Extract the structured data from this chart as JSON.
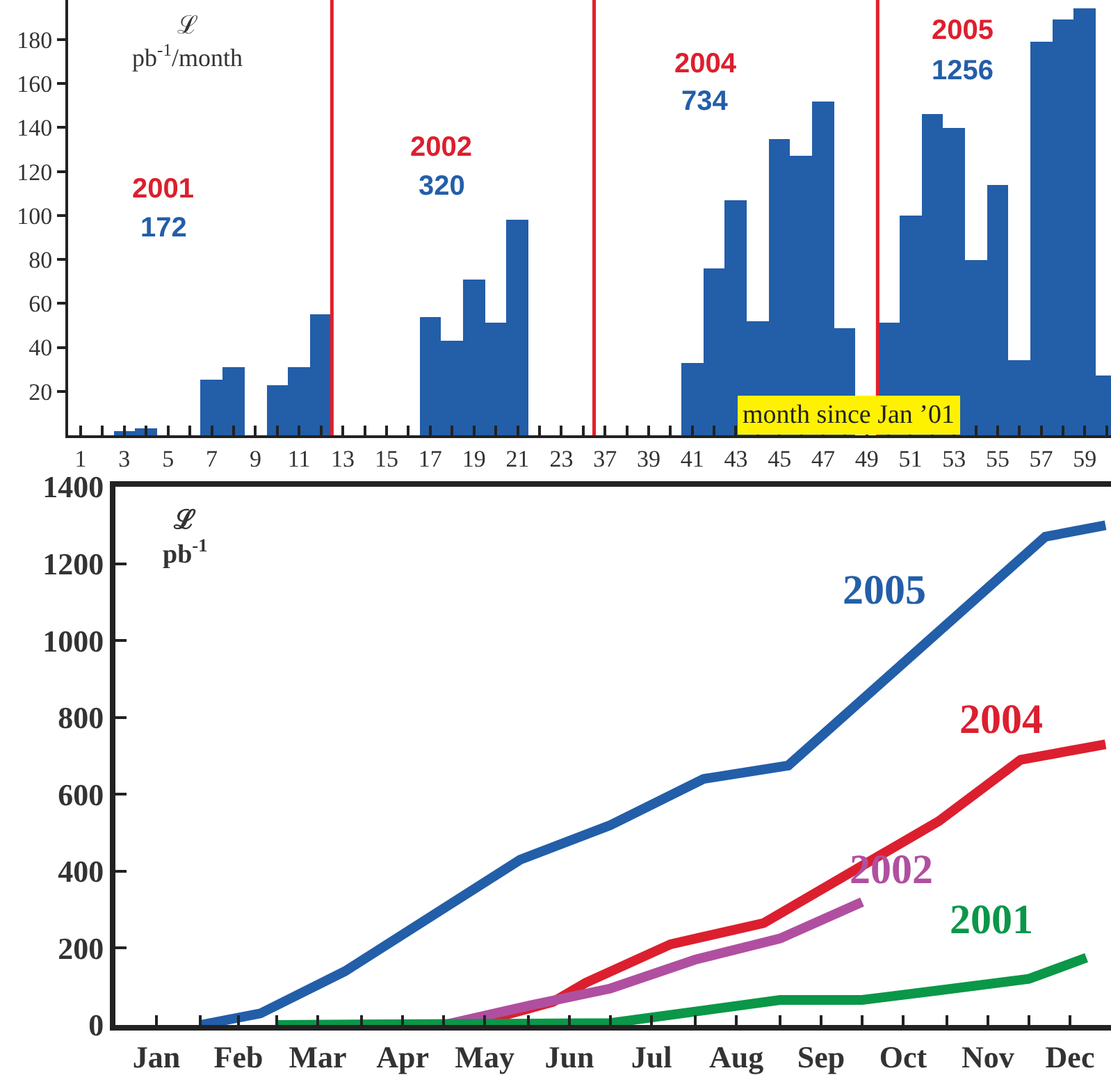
{
  "chart_data": [
    {
      "type": "bar",
      "ylabel": "ℒ\npb$^{-1}$/month",
      "color": "#235ea9",
      "x": [
        1,
        2,
        3,
        4,
        5,
        6,
        7,
        8,
        9,
        10,
        11,
        12,
        13,
        14,
        15,
        16,
        17,
        18,
        19,
        20,
        21,
        22,
        23,
        24
      ],
      "values": [
        0,
        0,
        2,
        3,
        0,
        0,
        25,
        31,
        0,
        23,
        31,
        55,
        0,
        0,
        0,
        0,
        54,
        43,
        71,
        51,
        98,
        0,
        0,
        0
      ],
      "xlim": [
        0.43,
        24.1
      ],
      "xticks": [
        1,
        {
          "value": 2,
          "label": null
        },
        3,
        {
          "value": 4,
          "label": null
        },
        5,
        {
          "value": 6,
          "label": null
        },
        7,
        {
          "value": 8,
          "label": null
        },
        9,
        {
          "value": 10,
          "label": null
        },
        11,
        {
          "value": 12,
          "label": null
        },
        13,
        {
          "value": 14,
          "label": null
        },
        15,
        {
          "value": 16,
          "label": null
        },
        17,
        {
          "value": 18,
          "label": null
        },
        19,
        {
          "value": 20,
          "label": null
        },
        21,
        {
          "value": 22,
          "label": null
        },
        23,
        {
          "value": 24,
          "label": null
        }
      ],
      "ylim": [
        0,
        198
      ],
      "yticks": [
        20,
        40,
        60,
        80,
        100,
        120,
        140,
        160,
        180
      ],
      "ref_lines": [
        {
          "axis": "x",
          "value": 12.5,
          "color": "#e0202a"
        }
      ],
      "annotations": [
        "2001",
        "172",
        "2002",
        "320"
      ]
    },
    {
      "type": "bar",
      "xlabel": "month since Jan ’01",
      "color": "#235ea9",
      "x": [
        37,
        38,
        39,
        40,
        41,
        42,
        43,
        44,
        45,
        46,
        47,
        48,
        49,
        50,
        51,
        52,
        53,
        54,
        55,
        56,
        57,
        58,
        59,
        60
      ],
      "values": [
        0,
        0,
        0,
        0,
        33,
        76,
        107,
        52,
        135,
        127,
        152,
        49,
        0,
        51,
        100,
        146,
        140,
        80,
        114,
        34,
        179,
        189,
        194,
        27
      ],
      "xlim": [
        36.1,
        60.2
      ],
      "xticks": [
        37,
        {
          "value": 38,
          "label": null
        },
        39,
        {
          "value": 40,
          "label": null
        },
        41,
        {
          "value": 42,
          "label": null
        },
        43,
        {
          "value": 44,
          "label": null
        },
        45,
        {
          "value": 46,
          "label": null
        },
        47,
        {
          "value": 48,
          "label": null
        },
        49,
        {
          "value": 50,
          "label": null
        },
        51,
        {
          "value": 52,
          "label": null
        },
        53,
        {
          "value": 54,
          "label": null
        },
        55,
        {
          "value": 56,
          "label": null
        },
        57,
        {
          "value": 58,
          "label": null
        },
        59,
        {
          "value": 60,
          "label": null
        }
      ],
      "ylim": [
        0,
        198
      ],
      "tick_labels": "x",
      "ref_lines": [
        {
          "axis": "x",
          "value": 36.5,
          "color": "#e0202a"
        },
        {
          "axis": "x",
          "value": 49.5,
          "color": "#e0202a"
        }
      ],
      "annotations": [
        "2004",
        "734",
        "2005",
        "1256"
      ]
    },
    {
      "type": "line",
      "ylabel": "ℒ\npb$^{-1}$",
      "xlim": [
        "--01-01",
        "--12-31"
      ],
      "xticks": [
        {
          "value": "--01-16",
          "label": "Jan"
        },
        {
          "value": "--02-01",
          "label": null
        },
        {
          "value": "--02-15",
          "label": "Feb"
        },
        {
          "value": "--03-01",
          "label": null
        },
        {
          "value": "--03-16",
          "label": "Mar"
        },
        {
          "value": "--04-01",
          "label": null
        },
        {
          "value": "--04-16",
          "label": "Apr"
        },
        {
          "value": "--05-01",
          "label": null
        },
        {
          "value": "--05-16",
          "label": "May"
        },
        {
          "value": "--06-01",
          "label": null
        },
        {
          "value": "--06-16",
          "label": "Jun"
        },
        {
          "value": "--07-01",
          "label": null
        },
        {
          "value": "--07-16",
          "label": "Jul"
        },
        {
          "value": "--08-01",
          "label": null
        },
        {
          "value": "--08-16",
          "label": "Aug"
        },
        {
          "value": "--09-01",
          "label": null
        },
        {
          "value": "--09-16",
          "label": "Sep"
        },
        {
          "value": "--10-01",
          "label": null
        },
        {
          "value": "--10-16",
          "label": "Oct"
        },
        {
          "value": "--11-01",
          "label": null
        },
        {
          "value": "--11-16",
          "label": "Nov"
        },
        {
          "value": "--12-01",
          "label": null
        },
        {
          "value": "--12-16",
          "label": "Dec"
        }
      ],
      "ylim": [
        0,
        1400
      ],
      "yticks": [
        0,
        200,
        400,
        600,
        800,
        1000,
        1200,
        1400
      ],
      "series": [
        {
          "name": "2005",
          "color": "#235ea9",
          "x": [
            "--02-01",
            "--02-23",
            "--03-26",
            "--05-29",
            "--07-01",
            "--08-04",
            "--09-04",
            "--12-07",
            "--12-29"
          ],
          "values": [
            0,
            30,
            140,
            430,
            520,
            640,
            675,
            1270,
            1300
          ]
        },
        {
          "name": "2004",
          "color": "#dc1f2e",
          "x": [
            "--05-10",
            "--06-10",
            "--06-22",
            "--07-23",
            "--08-26",
            "--10-29",
            "--11-28",
            "--12-29"
          ],
          "values": [
            0,
            60,
            110,
            210,
            265,
            530,
            690,
            730
          ]
        },
        {
          "name": "2002",
          "color": "#b04fa0",
          "x": [
            "--05-01",
            "--06-01",
            "--07-01",
            "--08-01",
            "--09-01",
            "--10-01"
          ],
          "values": [
            0,
            50,
            95,
            170,
            225,
            320
          ]
        },
        {
          "name": "2001",
          "color": "#0a9748",
          "x": [
            "--03-01",
            "--07-01",
            "--09-01",
            "--10-01",
            "--10-29",
            "--12-01",
            "--12-22"
          ],
          "values": [
            0,
            5,
            65,
            65,
            90,
            120,
            175
          ]
        }
      ],
      "line_style": "solid",
      "marker": "none"
    }
  ]
}
